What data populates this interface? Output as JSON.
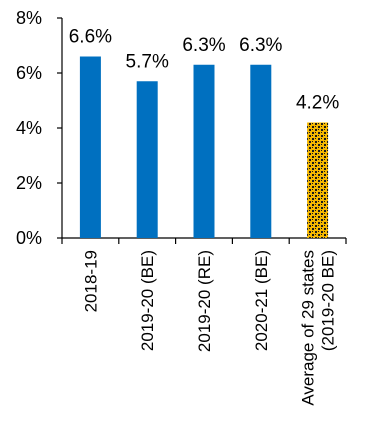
{
  "chart_data": {
    "type": "bar",
    "title": "",
    "xlabel": "",
    "ylabel": "",
    "ylim": [
      0,
      8
    ],
    "y_ticks": [
      "0%",
      "2%",
      "4%",
      "6%",
      "8%"
    ],
    "y_tick_values": [
      0,
      2,
      4,
      6,
      8
    ],
    "grid": false,
    "legend": "none",
    "categories": [
      [
        "2018-19"
      ],
      [
        "2019-20 (BE)"
      ],
      [
        "2019-20 (RE)"
      ],
      [
        "2020-21 (BE)"
      ],
      [
        "Average of 29 states",
        "(2019-20 BE)"
      ]
    ],
    "values": [
      6.6,
      5.7,
      6.3,
      6.3,
      4.2
    ],
    "data_labels": [
      "6.6%",
      "5.7%",
      "6.3%",
      "6.3%",
      "4.2%"
    ],
    "bar_styles": [
      "solid",
      "solid",
      "solid",
      "solid",
      "hatched"
    ],
    "colors": {
      "bar": "#0070C0",
      "highlight_fill": "#F5B800",
      "highlight_pattern": "#1a1a1a",
      "axis": "#000000"
    }
  }
}
